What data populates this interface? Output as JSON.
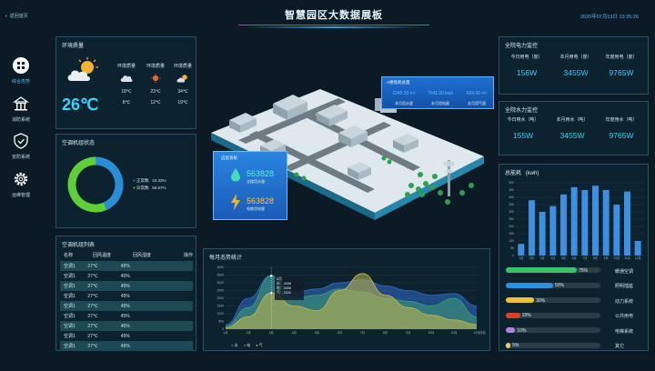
{
  "header": {
    "back_label": "返回首页",
    "title": "智慧园区大数据展板",
    "datetime": "2020年07月13日 13:35:26"
  },
  "sidebar": {
    "items": [
      {
        "label": "综合态势",
        "icon": "grid-icon",
        "active": true
      },
      {
        "label": "消防系统",
        "icon": "building-icon"
      },
      {
        "label": "安防系统",
        "icon": "shield-icon"
      },
      {
        "label": "运维管理",
        "icon": "gear-icon"
      }
    ]
  },
  "environment": {
    "title": "环境质量",
    "temperature": "26℃",
    "columns": [
      {
        "label": "环境质量",
        "high": "18℃",
        "low": "8℃",
        "icon": "cloud-icon"
      },
      {
        "label": "环境质量",
        "high": "23℃",
        "low": "12℃",
        "icon": "sun-icon"
      },
      {
        "label": "环境质量",
        "high": "34℃",
        "low": "19℃",
        "icon": "sun-cloud-icon"
      }
    ]
  },
  "ac_status": {
    "title": "空调机组状态",
    "legend": [
      {
        "label": "正常数",
        "value": "43.33%",
        "color": "#2a8ed6"
      },
      {
        "label": "异常数",
        "value": "56.67%",
        "color": "#5ecf3a"
      }
    ]
  },
  "ac_list": {
    "title": "空调机组列表",
    "headers": [
      "名称",
      "回风温度",
      "回风湿度",
      "操作"
    ],
    "rows": [
      [
        "空调1",
        "27℃",
        "45%",
        ""
      ],
      [
        "空调1",
        "27℃",
        "45%",
        ""
      ],
      [
        "空调1",
        "27℃",
        "45%",
        ""
      ],
      [
        "空调1",
        "27℃",
        "45%",
        ""
      ],
      [
        "空调1",
        "27℃",
        "45%",
        ""
      ],
      [
        "空调1",
        "27℃",
        "45%",
        ""
      ],
      [
        "空调1",
        "27℃",
        "45%",
        ""
      ],
      [
        "空调1",
        "27℃",
        "45%",
        ""
      ],
      [
        "空调1",
        "27℃",
        "45%",
        ""
      ]
    ]
  },
  "city": {
    "top_box": {
      "title": "A楼能耗总量",
      "values": [
        "2345.33 m³",
        "7541.66 kwh",
        "634.00 m³"
      ],
      "labels": [
        "本月用水量",
        "本月用电量",
        "本月用气量"
      ]
    },
    "side_box": {
      "title": "这类系统",
      "water_value": "563828",
      "water_label": "全楼用水量",
      "power_value": "563828",
      "power_label": "电耗用电量"
    }
  },
  "power": {
    "title": "全院电力监控",
    "stats": [
      {
        "label": "今日用电（度）",
        "value": "156W"
      },
      {
        "label": "本月用电（度）",
        "value": "3455W"
      },
      {
        "label": "年度用电（度）",
        "value": "9765W"
      }
    ]
  },
  "water": {
    "title": "全院水力监控",
    "stats": [
      {
        "label": "今日用水（吨）",
        "value": "155W"
      },
      {
        "label": "本月用水（吨）",
        "value": "3455W"
      },
      {
        "label": "年度用水（吨）",
        "value": "9765W"
      }
    ]
  },
  "energy": {
    "title": "总能耗",
    "unit": "(kwh)",
    "bars": [
      {
        "label": "暖通空调",
        "pct": "75%",
        "value": 75,
        "color": "#37c46a"
      },
      {
        "label": "照明插座",
        "pct": "50%",
        "value": 50,
        "color": "#2f8fd8"
      },
      {
        "label": "动力系统",
        "pct": "30%",
        "value": 30,
        "color": "#e8c33a"
      },
      {
        "label": "公共用电",
        "pct": "15%",
        "value": 15,
        "color": "#d8422c"
      },
      {
        "label": "电梯系统",
        "pct": "10%",
        "value": 10,
        "color": "#b083e0"
      },
      {
        "label": "其它",
        "pct": "5%",
        "value": 5,
        "color": "#f0c86a"
      }
    ]
  },
  "monthly": {
    "title": "每月态势统计",
    "tooltip": {
      "month": "3月",
      "items": [
        "水：3456",
        "电：3456",
        "气：2342"
      ]
    },
    "legend": [
      "水",
      "电",
      "气"
    ]
  },
  "chart_data": [
    {
      "type": "bar",
      "title": "总能耗",
      "ylabel": "(kwh)",
      "categories": [
        "1月",
        "2月",
        "3月",
        "4月",
        "5月",
        "6月",
        "7月",
        "8月",
        "9月",
        "10月",
        "11月",
        "12月"
      ],
      "values": [
        80,
        380,
        300,
        340,
        420,
        470,
        450,
        480,
        450,
        350,
        440,
        100
      ],
      "ylim": [
        0,
        500
      ],
      "yticks": [
        0,
        50,
        100,
        150,
        200,
        250,
        300,
        350,
        400,
        450,
        500
      ],
      "color": "#3d8fe0"
    },
    {
      "type": "area",
      "title": "每月态势统计",
      "xlabel": "月份",
      "categories": [
        "1月",
        "2月",
        "3月",
        "4月",
        "5月",
        "6月",
        "7月",
        "8月",
        "9月",
        "10月",
        "11月",
        "12月"
      ],
      "ylim": [
        0,
        4000
      ],
      "yticks": [
        0,
        500,
        1000,
        1500,
        2000,
        2500,
        3000,
        3500,
        4000
      ],
      "series": [
        {
          "name": "水",
          "color": "#2f6ec8",
          "values": [
            300,
            2000,
            3456,
            2400,
            2600,
            3000,
            3200,
            2800,
            2500,
            2200,
            2300,
            1500
          ]
        },
        {
          "name": "电",
          "color": "#3fa07a",
          "values": [
            200,
            1400,
            3456,
            2000,
            2200,
            2600,
            2400,
            2000,
            1800,
            1500,
            2000,
            800
          ]
        },
        {
          "name": "气",
          "color": "#c8b84a",
          "values": [
            100,
            800,
            2342,
            1500,
            1200,
            2500,
            3600,
            2200,
            1400,
            900,
            600,
            300
          ]
        }
      ]
    },
    {
      "type": "pie",
      "title": "空调机组状态",
      "categories": [
        "正常数",
        "异常数"
      ],
      "values": [
        43.33,
        56.67
      ],
      "colors": [
        "#2a8ed6",
        "#5ecf3a"
      ]
    }
  ]
}
